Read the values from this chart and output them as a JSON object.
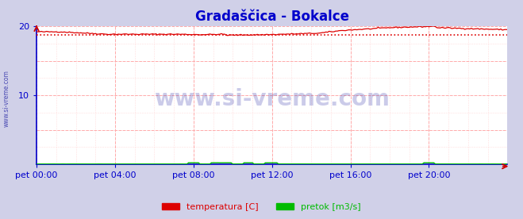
{
  "title": "Gradaščica - Bokalce",
  "title_color": "#0000cc",
  "title_fontsize": 12,
  "outer_bg_color": "#d0d0e8",
  "plot_bg_color": "#ffffff",
  "xlim": [
    0,
    288
  ],
  "ylim": [
    0,
    20
  ],
  "yticks": [
    10,
    20
  ],
  "xtick_labels": [
    "pet 00:00",
    "pet 04:00",
    "pet 08:00",
    "pet 12:00",
    "pet 16:00",
    "pet 20:00"
  ],
  "xtick_positions": [
    0,
    48,
    96,
    144,
    192,
    240
  ],
  "temp_color": "#dd0000",
  "flow_color": "#00bb00",
  "avg_line_color": "#dd0000",
  "avg_line_value": 18.7,
  "watermark_text": "www.si-vreme.com",
  "watermark_color": "#3333aa",
  "watermark_alpha": 0.25,
  "left_label": "www.si-vreme.com",
  "legend_temp_label": "temperatura [C]",
  "legend_flow_label": "pretok [m3/s]",
  "tick_color": "#0000cc",
  "tick_fontsize": 8,
  "spine_color": "#0000cc",
  "grid_major_color": "#ffaaaa",
  "grid_minor_color": "#ffdddd",
  "arrow_color": "#cc0000"
}
